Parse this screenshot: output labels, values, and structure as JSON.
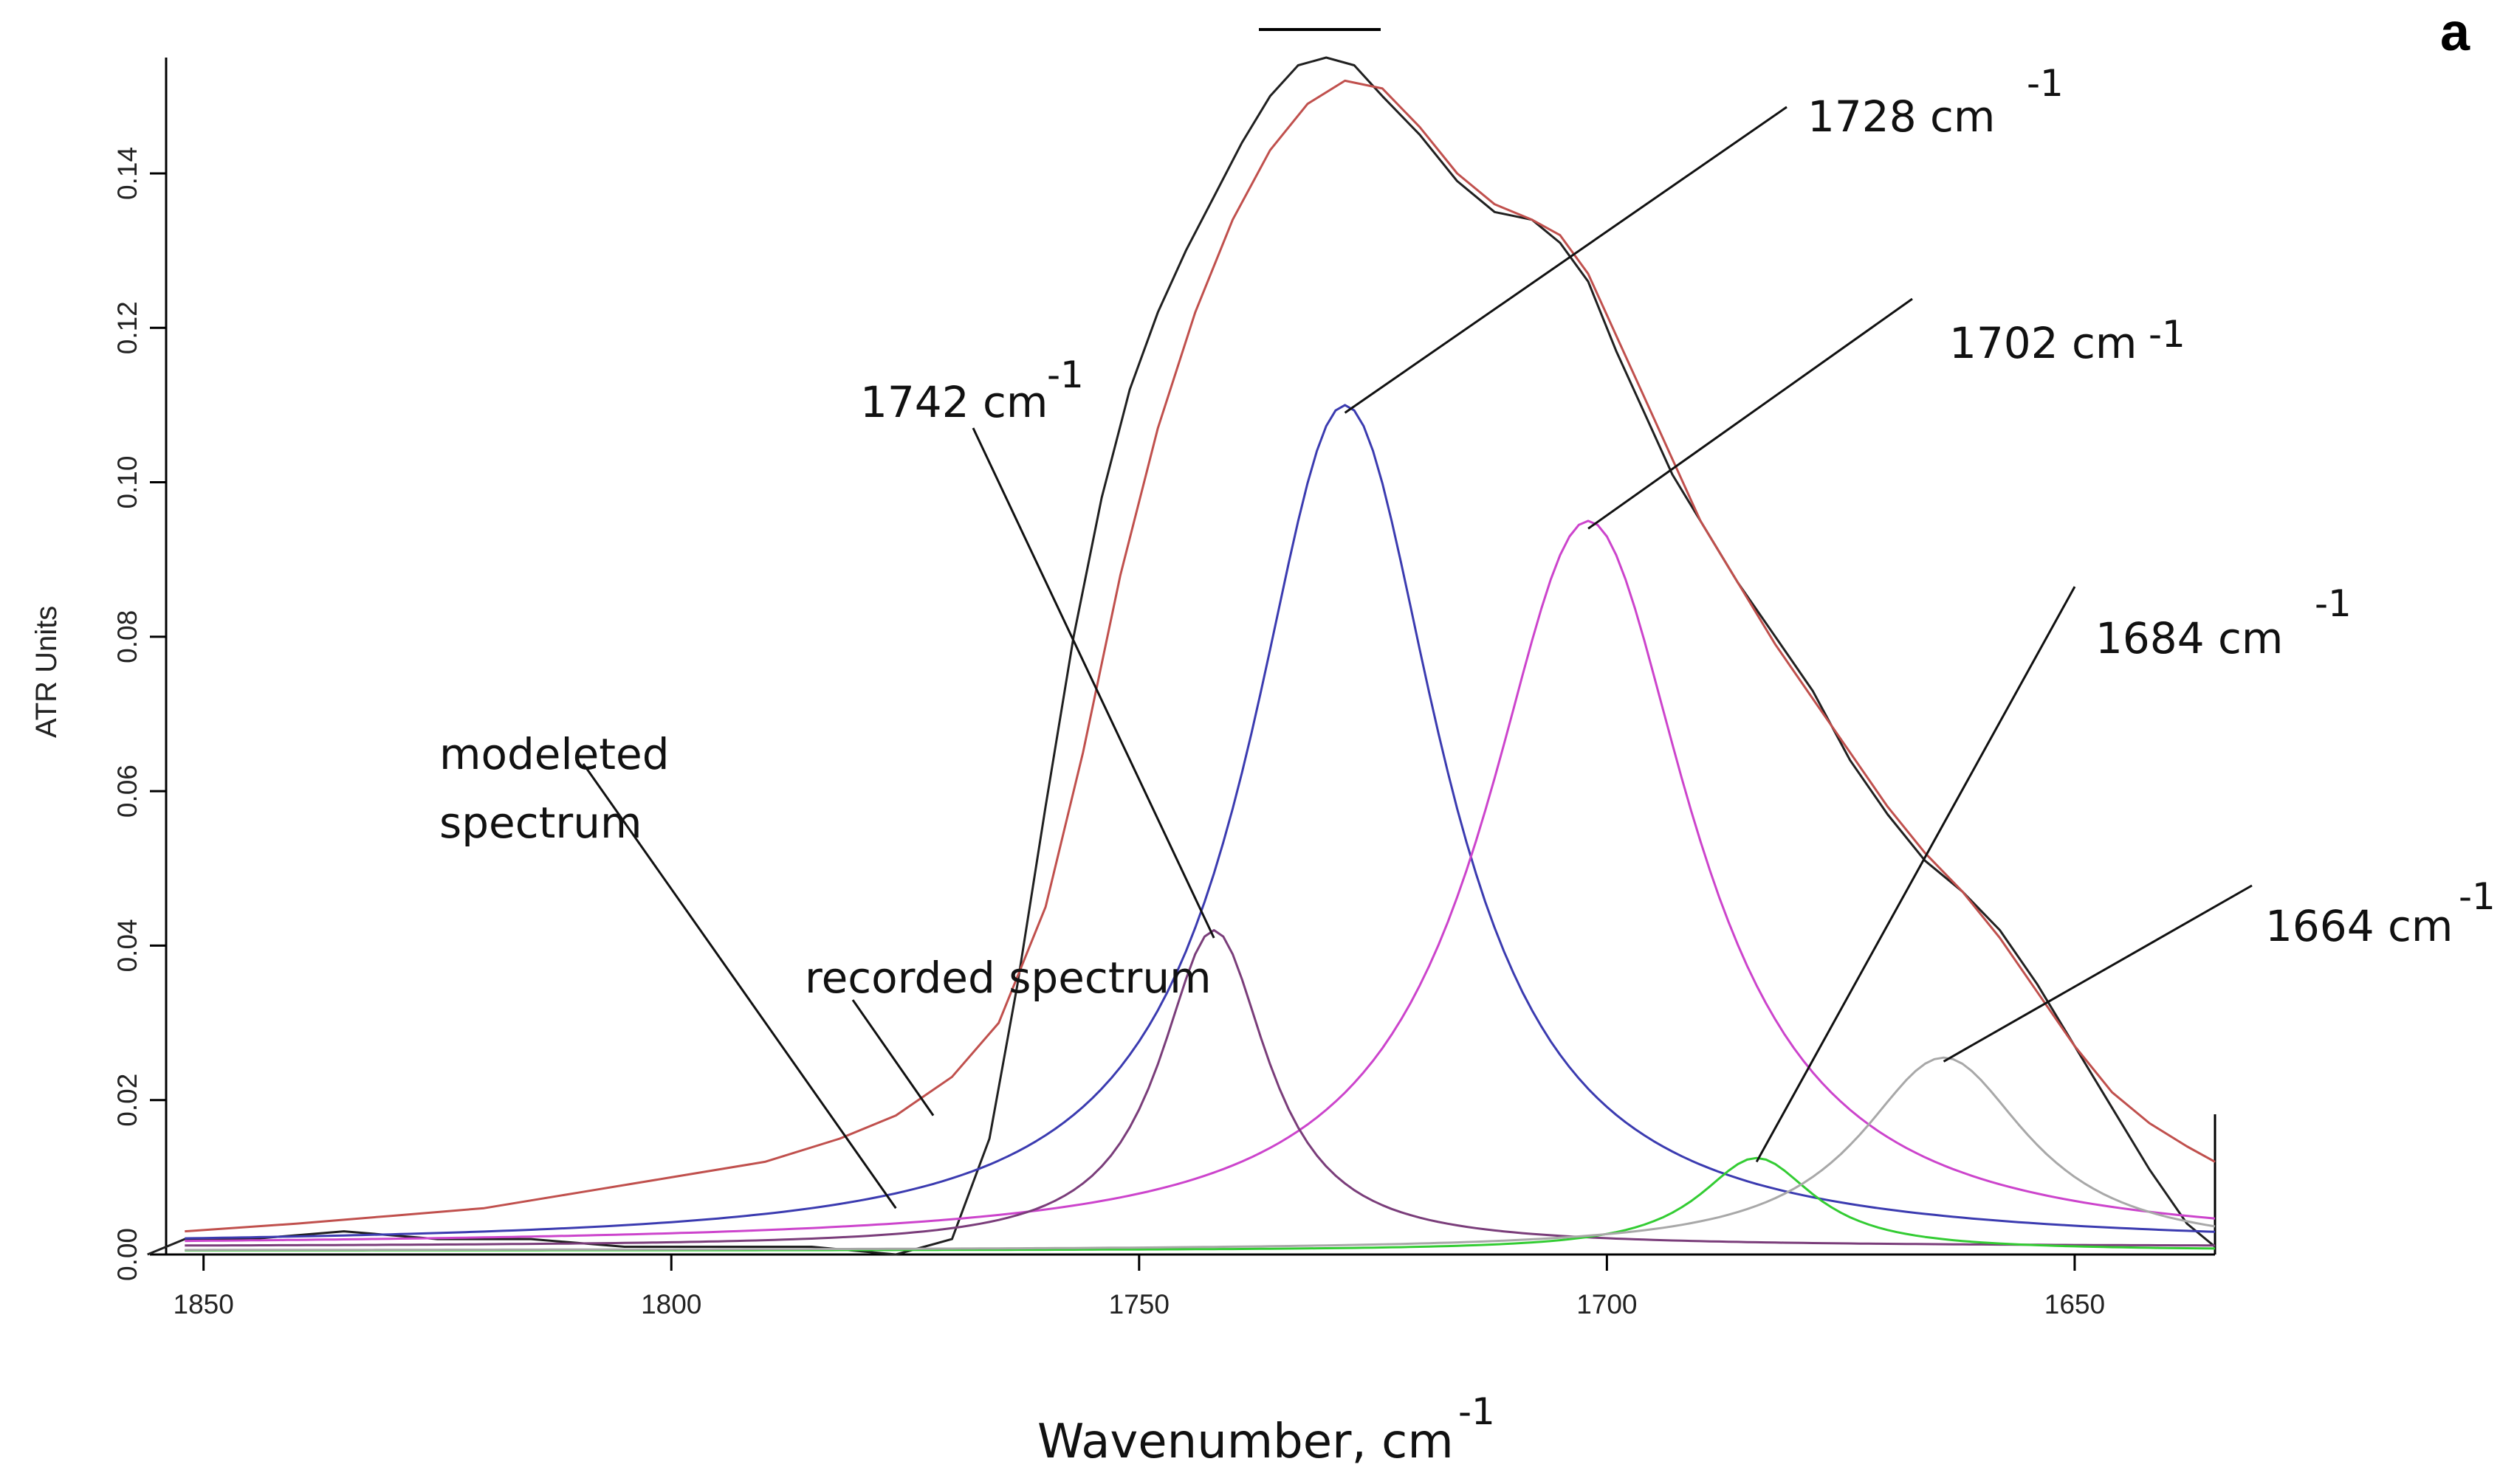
{
  "chart_data": {
    "type": "line",
    "panel_label": "a",
    "title": "",
    "xlabel": "Wavenumber, cm",
    "xlabel_sup": "-1",
    "ylabel": "ATR Units",
    "xlim": [
      1854,
      1635
    ],
    "ylim": [
      0,
      0.155
    ],
    "xticks": [
      1850,
      1800,
      1750,
      1700,
      1650
    ],
    "yticks": [
      0.0,
      0.02,
      0.04,
      0.06,
      0.08,
      0.1,
      0.12,
      0.14
    ],
    "ytick_labels": [
      "0.00",
      "0.02",
      "0.04",
      "0.06",
      "0.08",
      "0.10",
      "0.12",
      "0.14"
    ],
    "grid": false,
    "series": [
      {
        "name": "recorded spectrum",
        "color": "#202020",
        "x": [
          1856,
          1852,
          1845,
          1835,
          1825,
          1815,
          1805,
          1795,
          1785,
          1776,
          1770,
          1766,
          1763,
          1760,
          1757,
          1754,
          1751,
          1748,
          1745,
          1742,
          1739,
          1736,
          1733,
          1730,
          1727,
          1724,
          1720,
          1716,
          1712,
          1708,
          1705,
          1702,
          1699,
          1696,
          1693,
          1690,
          1686,
          1682,
          1678,
          1674,
          1670,
          1666,
          1662,
          1658,
          1654,
          1650,
          1646,
          1642,
          1638,
          1635
        ],
        "y": [
          0.0,
          0.002,
          0.002,
          0.003,
          0.002,
          0.002,
          0.001,
          0.001,
          0.001,
          0.0,
          0.002,
          0.015,
          0.035,
          0.058,
          0.08,
          0.098,
          0.112,
          0.122,
          0.13,
          0.137,
          0.144,
          0.15,
          0.154,
          0.155,
          0.154,
          0.15,
          0.145,
          0.139,
          0.135,
          0.134,
          0.131,
          0.126,
          0.117,
          0.109,
          0.101,
          0.095,
          0.087,
          0.08,
          0.073,
          0.064,
          0.057,
          0.051,
          0.047,
          0.042,
          0.035,
          0.027,
          0.019,
          0.011,
          0.004,
          0.001
        ]
      },
      {
        "name": "modeleted spectrum",
        "color": "#c0504d",
        "x": [
          1852,
          1840,
          1830,
          1820,
          1810,
          1800,
          1790,
          1782,
          1776,
          1770,
          1765,
          1760,
          1756,
          1752,
          1748,
          1744,
          1740,
          1736,
          1732,
          1728,
          1724,
          1720,
          1716,
          1712,
          1708,
          1705,
          1702,
          1699,
          1696,
          1693,
          1690,
          1686,
          1682,
          1678,
          1674,
          1670,
          1666,
          1662,
          1658,
          1654,
          1650,
          1646,
          1642,
          1638,
          1635
        ],
        "y": [
          0.003,
          0.004,
          0.005,
          0.006,
          0.008,
          0.01,
          0.012,
          0.015,
          0.018,
          0.023,
          0.03,
          0.045,
          0.065,
          0.088,
          0.107,
          0.122,
          0.134,
          0.143,
          0.149,
          0.152,
          0.151,
          0.146,
          0.14,
          0.136,
          0.134,
          0.132,
          0.127,
          0.119,
          0.111,
          0.103,
          0.095,
          0.087,
          0.079,
          0.072,
          0.065,
          0.058,
          0.052,
          0.047,
          0.041,
          0.034,
          0.027,
          0.021,
          0.017,
          0.014,
          0.012
        ]
      },
      {
        "name": "1728 cm-1 component",
        "color": "#3b3bb0",
        "type": "gauss",
        "center": 1728,
        "height": 0.109,
        "width": 12.5,
        "baseline": 0.001
      },
      {
        "name": "1702 cm-1 component",
        "color": "#cc44cc",
        "type": "gauss",
        "center": 1702,
        "height": 0.094,
        "width": 13.5,
        "baseline": 0.001
      },
      {
        "name": "1742 cm-1 component",
        "color": "#7a3d7a",
        "type": "gauss",
        "center": 1742,
        "height": 0.041,
        "width": 7.0,
        "baseline": 0.001
      },
      {
        "name": "1684 cm-1 component",
        "color": "#33cc33",
        "type": "gauss",
        "center": 1684,
        "height": 0.012,
        "width": 7.5,
        "baseline": 0.0005
      },
      {
        "name": "1664 cm-1 component",
        "color": "#a8a8a8",
        "type": "gauss",
        "center": 1664,
        "height": 0.025,
        "width": 11.0,
        "baseline": 0.0005
      }
    ],
    "annotations": [
      {
        "text": "1742 cm",
        "sup": "-1",
        "points_to": [
          1742,
          0.041
        ]
      },
      {
        "text": "1728  cm",
        "sup": "-1",
        "points_to": [
          1728,
          0.109
        ]
      },
      {
        "text": "1702 cm",
        "sup": "-1",
        "points_to": [
          1702,
          0.094
        ]
      },
      {
        "text": "1684 cm",
        "sup": "-1",
        "points_to": [
          1684,
          0.012
        ]
      },
      {
        "text": "1664 cm",
        "sup": "-1",
        "points_to": [
          1664,
          0.025
        ]
      },
      {
        "text": "modeleted",
        "text2": "spectrum",
        "points_to": [
          1776,
          0.006
        ]
      },
      {
        "text": "recorded spectrum",
        "points_to": [
          1772,
          0.018
        ]
      }
    ]
  }
}
